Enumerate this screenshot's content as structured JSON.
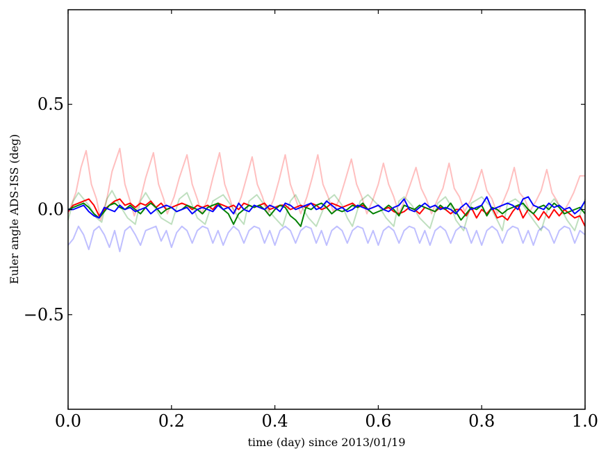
{
  "chart_data": {
    "type": "line",
    "xlabel": "time (day) since 2013/01/19",
    "ylabel": "Euler angle ADS-ISS (deg)",
    "xlim": [
      0.0,
      1.0
    ],
    "ylim": [
      -0.95,
      0.95
    ],
    "grid": false,
    "xticks": [
      0.0,
      0.2,
      0.4,
      0.6,
      0.8,
      1.0
    ],
    "xtick_labels": [
      "0.0",
      "0.2",
      "0.4",
      "0.6",
      "0.8",
      "1.0"
    ],
    "yticks": [
      0.5,
      0.0,
      -0.5
    ],
    "ytick_labels": [
      "0.5",
      "0.0",
      "−0.5"
    ],
    "series": [
      {
        "color": "#ff0000",
        "opacity": 0.25,
        "x": [
          0.0,
          0.015,
          0.025,
          0.035,
          0.045,
          0.055,
          0.063,
          0.075,
          0.085,
          0.1,
          0.11,
          0.12,
          0.128,
          0.14,
          0.15,
          0.165,
          0.175,
          0.185,
          0.192,
          0.205,
          0.215,
          0.23,
          0.24,
          0.25,
          0.258,
          0.27,
          0.28,
          0.293,
          0.303,
          0.313,
          0.322,
          0.335,
          0.345,
          0.356,
          0.366,
          0.376,
          0.386,
          0.398,
          0.408,
          0.42,
          0.43,
          0.44,
          0.45,
          0.462,
          0.472,
          0.483,
          0.493,
          0.503,
          0.513,
          0.525,
          0.535,
          0.548,
          0.558,
          0.568,
          0.578,
          0.59,
          0.6,
          0.61,
          0.62,
          0.63,
          0.64,
          0.652,
          0.662,
          0.673,
          0.683,
          0.693,
          0.703,
          0.715,
          0.725,
          0.737,
          0.747,
          0.757,
          0.767,
          0.778,
          0.788,
          0.8,
          0.81,
          0.82,
          0.83,
          0.842,
          0.852,
          0.863,
          0.873,
          0.883,
          0.893,
          0.905,
          0.915,
          0.926,
          0.936,
          0.946,
          0.956,
          0.968,
          0.978,
          0.99,
          1.0
        ],
        "y": [
          -0.02,
          0.08,
          0.2,
          0.28,
          0.12,
          0.05,
          -0.05,
          0.05,
          0.18,
          0.29,
          0.12,
          0.04,
          -0.03,
          0.05,
          0.15,
          0.27,
          0.12,
          0.05,
          -0.02,
          0.06,
          0.15,
          0.26,
          0.12,
          0.05,
          -0.02,
          0.05,
          0.15,
          0.27,
          0.12,
          0.05,
          -0.02,
          0.06,
          0.15,
          0.25,
          0.12,
          0.06,
          -0.02,
          0.05,
          0.14,
          0.26,
          0.12,
          0.05,
          -0.02,
          0.06,
          0.15,
          0.26,
          0.12,
          0.06,
          -0.01,
          0.05,
          0.13,
          0.24,
          0.12,
          0.06,
          -0.02,
          0.05,
          0.12,
          0.22,
          0.12,
          0.06,
          -0.02,
          0.05,
          0.12,
          0.2,
          0.1,
          0.05,
          -0.02,
          0.05,
          0.1,
          0.22,
          0.1,
          0.06,
          -0.01,
          0.04,
          0.1,
          0.19,
          0.09,
          0.05,
          -0.02,
          0.04,
          0.1,
          0.2,
          0.08,
          0.05,
          -0.01,
          0.04,
          0.09,
          0.19,
          0.08,
          0.04,
          -0.02,
          0.03,
          0.08,
          0.16,
          0.16
        ]
      },
      {
        "color": "#008000",
        "opacity": 0.25,
        "x": [
          0.0,
          0.01,
          0.02,
          0.04,
          0.055,
          0.065,
          0.075,
          0.085,
          0.1,
          0.115,
          0.13,
          0.14,
          0.15,
          0.165,
          0.18,
          0.2,
          0.215,
          0.23,
          0.24,
          0.25,
          0.265,
          0.28,
          0.3,
          0.315,
          0.33,
          0.34,
          0.35,
          0.365,
          0.38,
          0.4,
          0.415,
          0.43,
          0.44,
          0.45,
          0.465,
          0.48,
          0.5,
          0.515,
          0.53,
          0.54,
          0.55,
          0.565,
          0.58,
          0.6,
          0.615,
          0.63,
          0.64,
          0.65,
          0.665,
          0.68,
          0.7,
          0.715,
          0.73,
          0.74,
          0.75,
          0.765,
          0.78,
          0.8,
          0.815,
          0.83,
          0.84,
          0.85,
          0.865,
          0.88,
          0.9,
          0.915,
          0.93,
          0.94,
          0.95,
          0.965,
          0.98,
          1.0
        ],
        "y": [
          -0.05,
          0.04,
          0.08,
          0.02,
          -0.04,
          -0.06,
          0.05,
          0.09,
          0.02,
          -0.04,
          -0.07,
          0.04,
          0.08,
          0.02,
          -0.04,
          -0.07,
          0.05,
          0.08,
          0.02,
          -0.04,
          -0.07,
          0.04,
          0.07,
          0.02,
          -0.04,
          -0.07,
          0.04,
          0.07,
          0.02,
          -0.04,
          -0.08,
          0.04,
          0.07,
          0.02,
          -0.04,
          -0.08,
          0.04,
          0.07,
          0.02,
          -0.04,
          -0.08,
          0.04,
          0.07,
          0.02,
          -0.04,
          -0.08,
          0.04,
          0.06,
          0.02,
          -0.04,
          -0.09,
          0.03,
          0.06,
          0.02,
          -0.05,
          -0.1,
          0.03,
          0.06,
          0.02,
          -0.05,
          -0.1,
          0.03,
          0.05,
          0.02,
          -0.05,
          -0.1,
          0.02,
          0.05,
          0.02,
          -0.05,
          -0.1,
          0.05
        ]
      },
      {
        "color": "#0000ff",
        "opacity": 0.25,
        "x": [
          0.0,
          0.01,
          0.02,
          0.03,
          0.04,
          0.05,
          0.06,
          0.07,
          0.08,
          0.09,
          0.1,
          0.11,
          0.12,
          0.13,
          0.14,
          0.15,
          0.16,
          0.17,
          0.18,
          0.19,
          0.2,
          0.21,
          0.22,
          0.23,
          0.24,
          0.25,
          0.26,
          0.27,
          0.28,
          0.29,
          0.3,
          0.31,
          0.32,
          0.33,
          0.34,
          0.35,
          0.36,
          0.37,
          0.38,
          0.39,
          0.4,
          0.41,
          0.42,
          0.43,
          0.44,
          0.45,
          0.46,
          0.47,
          0.48,
          0.49,
          0.5,
          0.51,
          0.52,
          0.53,
          0.54,
          0.55,
          0.56,
          0.57,
          0.58,
          0.59,
          0.6,
          0.61,
          0.62,
          0.63,
          0.64,
          0.65,
          0.66,
          0.67,
          0.68,
          0.69,
          0.7,
          0.71,
          0.72,
          0.73,
          0.74,
          0.75,
          0.76,
          0.77,
          0.78,
          0.79,
          0.8,
          0.81,
          0.82,
          0.83,
          0.84,
          0.85,
          0.86,
          0.87,
          0.88,
          0.89,
          0.9,
          0.91,
          0.92,
          0.93,
          0.94,
          0.95,
          0.96,
          0.97,
          0.98,
          0.99,
          1.0
        ],
        "y": [
          -0.17,
          -0.14,
          -0.08,
          -0.12,
          -0.19,
          -0.1,
          -0.08,
          -0.12,
          -0.18,
          -0.1,
          -0.2,
          -0.1,
          -0.08,
          -0.12,
          -0.17,
          -0.1,
          -0.09,
          -0.08,
          -0.15,
          -0.1,
          -0.18,
          -0.11,
          -0.08,
          -0.1,
          -0.16,
          -0.1,
          -0.08,
          -0.09,
          -0.16,
          -0.1,
          -0.17,
          -0.11,
          -0.08,
          -0.1,
          -0.16,
          -0.1,
          -0.08,
          -0.09,
          -0.16,
          -0.1,
          -0.17,
          -0.1,
          -0.08,
          -0.1,
          -0.16,
          -0.1,
          -0.08,
          -0.09,
          -0.16,
          -0.1,
          -0.17,
          -0.1,
          -0.08,
          -0.1,
          -0.16,
          -0.1,
          -0.08,
          -0.09,
          -0.16,
          -0.1,
          -0.17,
          -0.1,
          -0.08,
          -0.1,
          -0.16,
          -0.1,
          -0.08,
          -0.09,
          -0.16,
          -0.1,
          -0.17,
          -0.1,
          -0.08,
          -0.1,
          -0.16,
          -0.1,
          -0.08,
          -0.09,
          -0.16,
          -0.1,
          -0.17,
          -0.1,
          -0.08,
          -0.1,
          -0.16,
          -0.1,
          -0.08,
          -0.09,
          -0.16,
          -0.1,
          -0.17,
          -0.1,
          -0.08,
          -0.1,
          -0.16,
          -0.1,
          -0.08,
          -0.09,
          -0.16,
          -0.1,
          -0.12
        ]
      },
      {
        "color": "#ff0000",
        "opacity": 1.0,
        "x": [
          0.0,
          0.01,
          0.02,
          0.03,
          0.04,
          0.05,
          0.06,
          0.07,
          0.08,
          0.09,
          0.1,
          0.11,
          0.12,
          0.13,
          0.14,
          0.15,
          0.16,
          0.17,
          0.18,
          0.19,
          0.2,
          0.21,
          0.22,
          0.23,
          0.24,
          0.25,
          0.26,
          0.27,
          0.28,
          0.29,
          0.3,
          0.31,
          0.32,
          0.33,
          0.34,
          0.35,
          0.36,
          0.37,
          0.38,
          0.39,
          0.4,
          0.41,
          0.42,
          0.43,
          0.44,
          0.45,
          0.46,
          0.47,
          0.48,
          0.49,
          0.5,
          0.51,
          0.52,
          0.53,
          0.54,
          0.55,
          0.56,
          0.57,
          0.58,
          0.59,
          0.6,
          0.61,
          0.62,
          0.63,
          0.64,
          0.65,
          0.66,
          0.67,
          0.68,
          0.69,
          0.7,
          0.71,
          0.72,
          0.73,
          0.74,
          0.75,
          0.76,
          0.77,
          0.78,
          0.79,
          0.8,
          0.81,
          0.82,
          0.83,
          0.84,
          0.85,
          0.86,
          0.87,
          0.88,
          0.89,
          0.9,
          0.91,
          0.92,
          0.93,
          0.94,
          0.95,
          0.96,
          0.97,
          0.98,
          0.99,
          1.0
        ],
        "y": [
          -0.01,
          0.02,
          0.03,
          0.04,
          0.05,
          0.02,
          -0.03,
          0.0,
          0.02,
          0.04,
          0.05,
          0.02,
          0.03,
          0.01,
          0.03,
          0.02,
          0.04,
          0.01,
          0.03,
          0.0,
          0.01,
          0.02,
          0.03,
          0.02,
          0.0,
          0.02,
          0.01,
          0.02,
          0.0,
          0.03,
          0.02,
          0.01,
          0.02,
          0.0,
          0.03,
          0.02,
          0.01,
          0.02,
          0.03,
          0.0,
          0.01,
          0.02,
          0.02,
          0.0,
          0.01,
          0.02,
          0.01,
          0.03,
          0.02,
          0.0,
          0.01,
          0.03,
          0.02,
          0.01,
          0.02,
          0.03,
          0.01,
          0.02,
          0.0,
          0.01,
          0.02,
          0.0,
          0.01,
          -0.01,
          -0.02,
          -0.01,
          0.01,
          0.0,
          -0.02,
          0.01,
          0.0,
          -0.01,
          0.01,
          0.0,
          -0.02,
          0.0,
          0.0,
          -0.03,
          0.01,
          -0.04,
          0.0,
          -0.02,
          0.01,
          -0.04,
          -0.03,
          -0.05,
          -0.01,
          0.02,
          -0.04,
          0.0,
          -0.02,
          -0.05,
          -0.01,
          -0.04,
          0.0,
          -0.03,
          0.0,
          -0.02,
          -0.04,
          -0.03,
          -0.08
        ]
      },
      {
        "color": "#008000",
        "opacity": 1.0,
        "x": [
          0.0,
          0.01,
          0.02,
          0.03,
          0.04,
          0.05,
          0.06,
          0.07,
          0.08,
          0.09,
          0.1,
          0.11,
          0.12,
          0.13,
          0.14,
          0.15,
          0.16,
          0.17,
          0.18,
          0.19,
          0.2,
          0.21,
          0.22,
          0.23,
          0.24,
          0.25,
          0.26,
          0.27,
          0.28,
          0.29,
          0.3,
          0.31,
          0.32,
          0.33,
          0.34,
          0.35,
          0.36,
          0.37,
          0.38,
          0.39,
          0.4,
          0.41,
          0.42,
          0.43,
          0.44,
          0.45,
          0.46,
          0.47,
          0.48,
          0.49,
          0.5,
          0.51,
          0.52,
          0.53,
          0.54,
          0.55,
          0.56,
          0.57,
          0.58,
          0.59,
          0.6,
          0.61,
          0.62,
          0.63,
          0.64,
          0.65,
          0.66,
          0.67,
          0.68,
          0.69,
          0.7,
          0.71,
          0.72,
          0.73,
          0.74,
          0.75,
          0.76,
          0.77,
          0.78,
          0.79,
          0.8,
          0.81,
          0.82,
          0.83,
          0.84,
          0.85,
          0.86,
          0.87,
          0.88,
          0.89,
          0.9,
          0.91,
          0.92,
          0.93,
          0.94,
          0.95,
          0.96,
          0.97,
          0.98,
          0.99,
          1.0
        ],
        "y": [
          0.0,
          0.01,
          0.02,
          0.03,
          0.01,
          -0.02,
          -0.04,
          -0.01,
          0.02,
          0.03,
          0.01,
          0.0,
          0.02,
          0.0,
          -0.02,
          0.01,
          0.03,
          0.01,
          -0.02,
          0.0,
          0.01,
          -0.01,
          0.0,
          0.02,
          0.01,
          0.0,
          -0.02,
          0.01,
          0.02,
          0.03,
          0.0,
          -0.02,
          -0.07,
          -0.02,
          0.0,
          0.02,
          0.01,
          0.02,
          0.0,
          -0.03,
          0.0,
          0.02,
          0.01,
          -0.03,
          -0.05,
          -0.08,
          0.01,
          0.0,
          0.02,
          0.03,
          0.01,
          -0.02,
          0.0,
          -0.01,
          0.0,
          0.02,
          0.01,
          0.03,
          0.0,
          -0.02,
          -0.01,
          0.0,
          0.02,
          0.0,
          -0.03,
          0.02,
          0.01,
          0.0,
          0.02,
          0.01,
          0.0,
          -0.01,
          0.02,
          0.0,
          0.03,
          -0.01,
          -0.05,
          -0.02,
          0.01,
          0.0,
          0.02,
          -0.03,
          0.01,
          0.0,
          -0.02,
          0.0,
          0.01,
          0.02,
          0.03,
          0.0,
          -0.02,
          0.01,
          0.02,
          0.0,
          0.03,
          0.01,
          -0.02,
          -0.01,
          0.0,
          0.01,
          -0.02
        ]
      },
      {
        "color": "#0000ff",
        "opacity": 1.0,
        "x": [
          0.0,
          0.01,
          0.02,
          0.03,
          0.04,
          0.05,
          0.06,
          0.07,
          0.08,
          0.09,
          0.1,
          0.11,
          0.12,
          0.13,
          0.14,
          0.15,
          0.16,
          0.17,
          0.18,
          0.19,
          0.2,
          0.21,
          0.22,
          0.23,
          0.24,
          0.25,
          0.26,
          0.27,
          0.28,
          0.29,
          0.3,
          0.31,
          0.32,
          0.33,
          0.34,
          0.35,
          0.36,
          0.37,
          0.38,
          0.39,
          0.4,
          0.41,
          0.42,
          0.43,
          0.44,
          0.45,
          0.46,
          0.47,
          0.48,
          0.49,
          0.5,
          0.51,
          0.52,
          0.53,
          0.54,
          0.55,
          0.56,
          0.57,
          0.58,
          0.59,
          0.6,
          0.61,
          0.62,
          0.63,
          0.64,
          0.65,
          0.66,
          0.67,
          0.68,
          0.69,
          0.7,
          0.71,
          0.72,
          0.73,
          0.74,
          0.75,
          0.76,
          0.77,
          0.78,
          0.79,
          0.8,
          0.81,
          0.82,
          0.83,
          0.84,
          0.85,
          0.86,
          0.87,
          0.88,
          0.89,
          0.9,
          0.91,
          0.92,
          0.93,
          0.94,
          0.95,
          0.96,
          0.97,
          0.98,
          0.99,
          1.0
        ],
        "y": [
          0.0,
          0.0,
          0.01,
          0.02,
          -0.01,
          -0.03,
          -0.04,
          0.01,
          0.0,
          -0.01,
          0.02,
          0.0,
          0.01,
          -0.01,
          0.0,
          0.01,
          -0.02,
          0.0,
          0.01,
          0.02,
          0.01,
          -0.01,
          0.0,
          0.01,
          -0.02,
          0.0,
          0.01,
          0.0,
          -0.01,
          0.02,
          0.0,
          0.01,
          -0.02,
          0.03,
          0.0,
          -0.01,
          0.02,
          0.01,
          0.0,
          0.02,
          0.01,
          -0.01,
          0.03,
          0.02,
          0.0,
          0.01,
          0.02,
          0.03,
          0.0,
          0.01,
          0.04,
          0.02,
          0.0,
          0.01,
          -0.01,
          0.0,
          0.02,
          0.01,
          0.0,
          0.01,
          0.02,
          0.0,
          -0.01,
          0.01,
          0.02,
          0.05,
          0.0,
          -0.01,
          0.01,
          0.03,
          0.01,
          0.02,
          0.0,
          0.01,
          0.0,
          -0.02,
          0.01,
          0.03,
          0.0,
          0.01,
          0.02,
          0.06,
          0.0,
          0.01,
          0.02,
          0.03,
          0.02,
          0.0,
          0.05,
          0.06,
          0.02,
          0.01,
          0.0,
          0.03,
          0.01,
          0.02,
          0.0,
          0.01,
          -0.02,
          0.0,
          0.04
        ]
      }
    ]
  }
}
